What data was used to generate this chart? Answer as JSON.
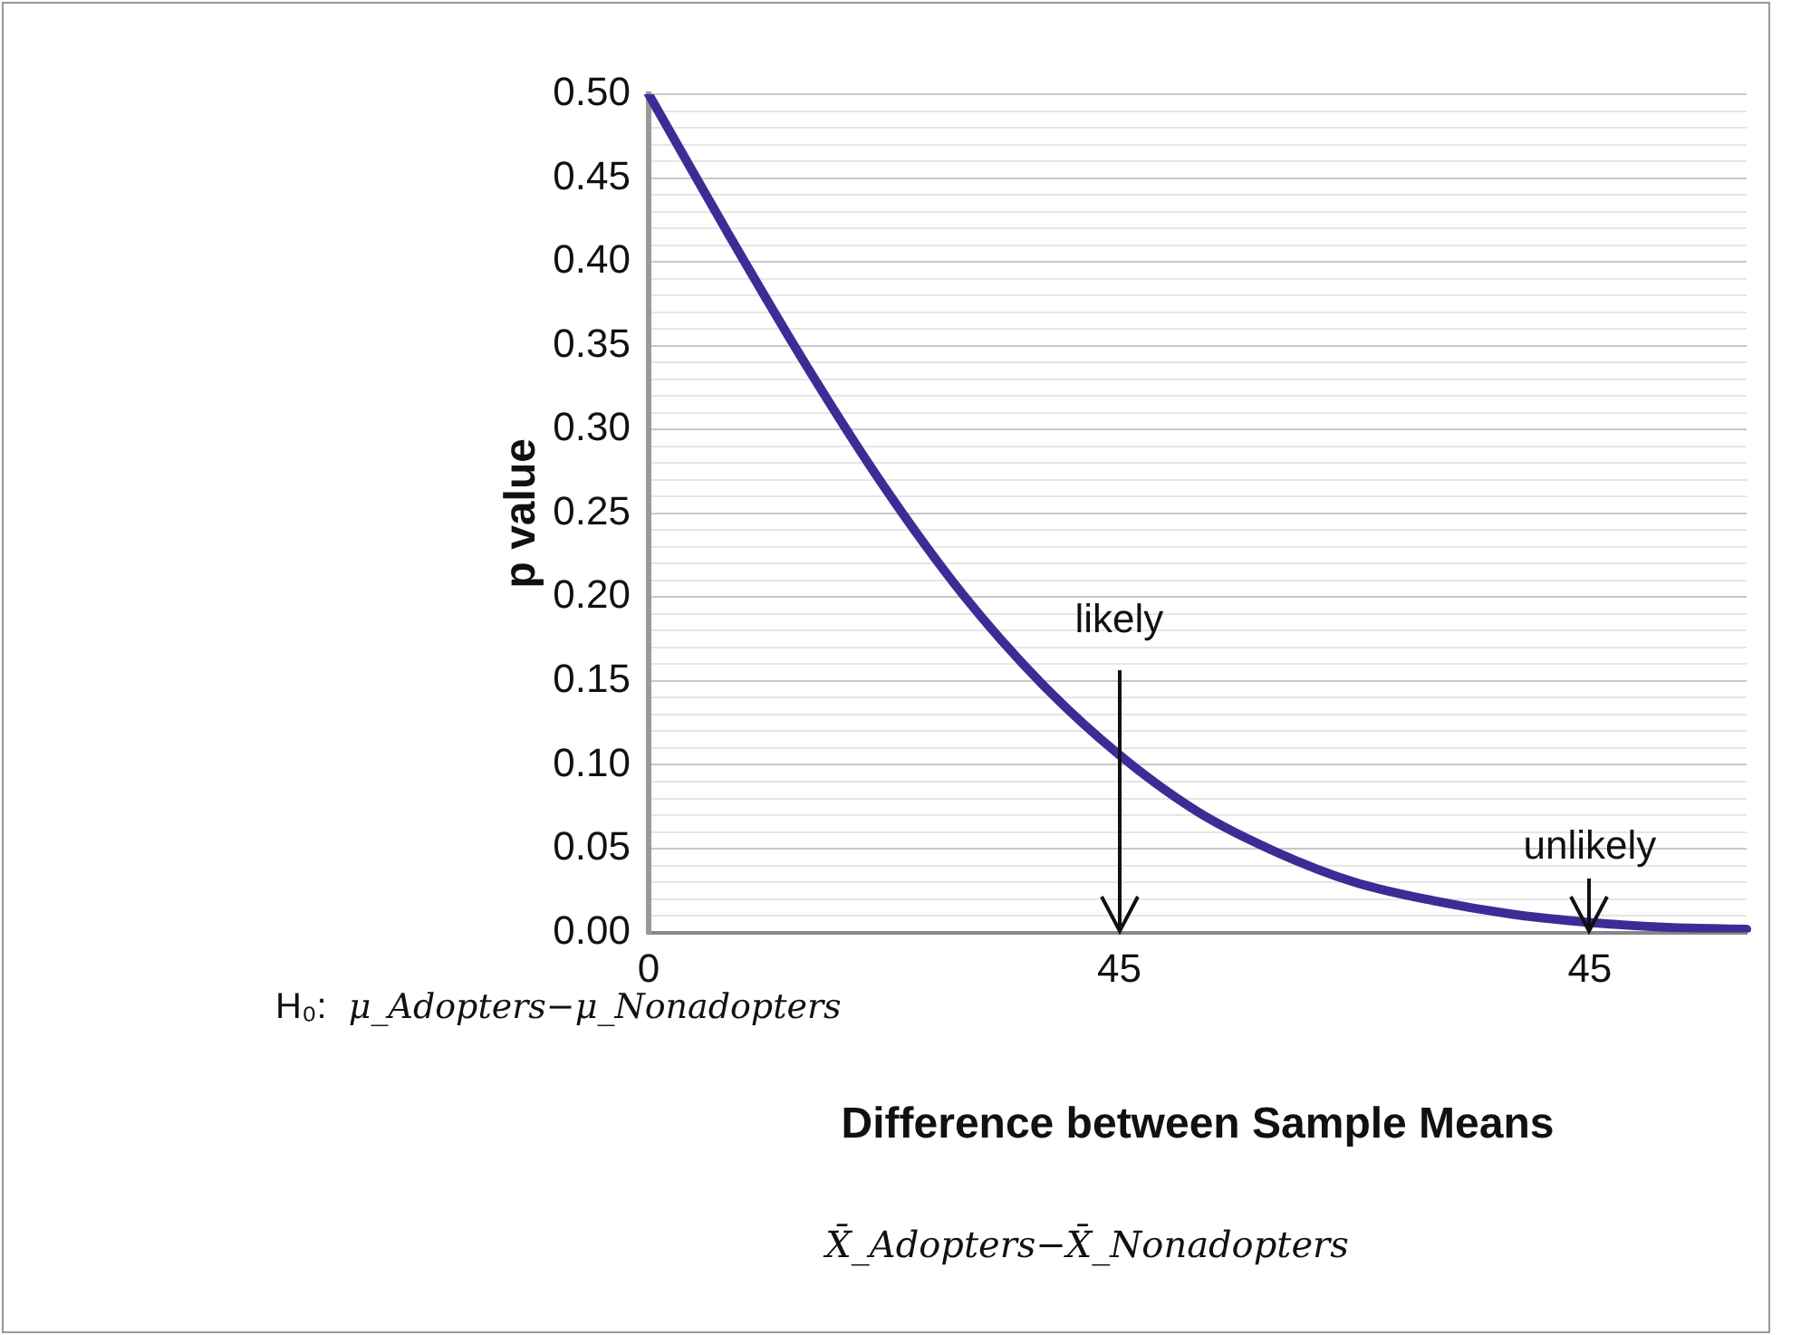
{
  "chart_data": {
    "type": "line",
    "xlabel": "Difference between Sample Means",
    "ylabel": "p value",
    "categories": [
      "0",
      null,
      null,
      null,
      null,
      null,
      "45",
      null,
      null,
      null,
      null,
      null,
      "45",
      null,
      null
    ],
    "series": [
      {
        "color": "#3c2d96",
        "values": [
          0.5,
          0.418,
          0.339,
          0.266,
          0.202,
          0.149,
          0.106,
          0.072,
          0.048,
          0.03,
          0.019,
          0.011,
          0.006,
          0.003,
          0.002
        ]
      }
    ],
    "ylim": [
      0,
      0.5
    ],
    "yticks": [
      {
        "value": 0,
        "label": "0.00"
      },
      {
        "value": 0.01,
        "label": null
      },
      {
        "value": 0.02,
        "label": null
      },
      {
        "value": 0.03,
        "label": null
      },
      {
        "value": 0.04,
        "label": null
      },
      {
        "value": 0.05,
        "label": "0.05"
      },
      {
        "value": 0.06,
        "label": null
      },
      {
        "value": 0.07,
        "label": null
      },
      {
        "value": 0.08,
        "label": null
      },
      {
        "value": 0.09,
        "label": null
      },
      {
        "value": 0.1,
        "label": "0.10"
      },
      {
        "value": 0.11,
        "label": null
      },
      {
        "value": 0.12,
        "label": null
      },
      {
        "value": 0.13,
        "label": null
      },
      {
        "value": 0.14,
        "label": null
      },
      {
        "value": 0.15,
        "label": "0.15"
      },
      {
        "value": 0.16,
        "label": null
      },
      {
        "value": 0.17,
        "label": null
      },
      {
        "value": 0.18,
        "label": null
      },
      {
        "value": 0.19,
        "label": null
      },
      {
        "value": 0.2,
        "label": "0.20"
      },
      {
        "value": 0.21,
        "label": null
      },
      {
        "value": 0.22,
        "label": null
      },
      {
        "value": 0.23,
        "label": null
      },
      {
        "value": 0.24,
        "label": null
      },
      {
        "value": 0.25,
        "label": "0.25"
      },
      {
        "value": 0.26,
        "label": null
      },
      {
        "value": 0.27,
        "label": null
      },
      {
        "value": 0.28,
        "label": null
      },
      {
        "value": 0.29,
        "label": null
      },
      {
        "value": 0.3,
        "label": "0.30"
      },
      {
        "value": 0.31,
        "label": null
      },
      {
        "value": 0.32,
        "label": null
      },
      {
        "value": 0.33,
        "label": null
      },
      {
        "value": 0.34,
        "label": null
      },
      {
        "value": 0.35,
        "label": "0.35"
      },
      {
        "value": 0.36,
        "label": null
      },
      {
        "value": 0.37,
        "label": null
      },
      {
        "value": 0.38,
        "label": null
      },
      {
        "value": 0.39,
        "label": null
      },
      {
        "value": 0.4,
        "label": "0.40"
      },
      {
        "value": 0.41,
        "label": null
      },
      {
        "value": 0.42,
        "label": null
      },
      {
        "value": 0.43,
        "label": null
      },
      {
        "value": 0.44,
        "label": null
      },
      {
        "value": 0.45,
        "label": "0.45"
      },
      {
        "value": 0.46,
        "label": null
      },
      {
        "value": 0.47,
        "label": null
      },
      {
        "value": 0.48,
        "label": null
      },
      {
        "value": 0.49,
        "label": null
      },
      {
        "value": 0.5,
        "label": "0.50"
      }
    ],
    "grid": "y",
    "marker": "none",
    "line_style": "solid",
    "annotations": [
      "likely",
      "unlikely",
      "H₀:  μ_Adopters−μ_Nonadopters",
      "X̄_Adopters−X̄_Nonadopters"
    ]
  }
}
